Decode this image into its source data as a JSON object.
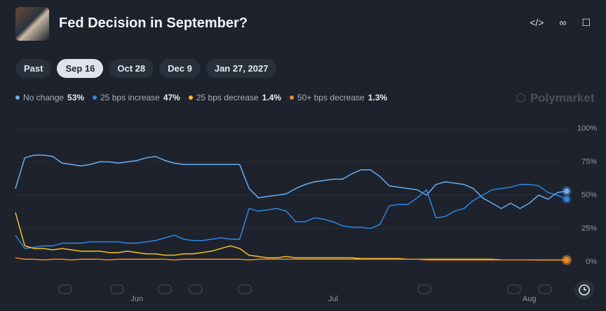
{
  "header": {
    "title": "Fed Decision in September?"
  },
  "tabs": [
    "Past",
    "Sep 16",
    "Oct 28",
    "Dec 9",
    "Jan 27, 2027"
  ],
  "watermark": "Polymarket",
  "chart_data": {
    "type": "line",
    "categories": [
      null,
      null,
      null,
      null,
      null,
      null,
      null,
      null,
      null,
      null,
      null,
      null,
      null,
      "Jun",
      null,
      null,
      null,
      null,
      null,
      null,
      null,
      null,
      null,
      null,
      null,
      null,
      null,
      null,
      null,
      null,
      null,
      null,
      null,
      null,
      "Jul",
      null,
      null,
      null,
      null,
      null,
      null,
      null,
      null,
      null,
      null,
      null,
      null,
      null,
      null,
      null,
      null,
      null,
      null,
      null,
      null,
      "Aug",
      null,
      null,
      null,
      null
    ],
    "ylim": [
      0,
      100
    ],
    "yticks": [
      {
        "value": 0,
        "label": "0%"
      },
      {
        "value": 25,
        "label": "25%"
      },
      {
        "value": 50,
        "label": "50%"
      },
      {
        "value": 75,
        "label": "75%"
      },
      {
        "value": 100,
        "label": "100%"
      }
    ],
    "grid": true,
    "series": [
      {
        "name": "No change",
        "color": "#6aaef0",
        "current": 53,
        "current_label": "53%",
        "values": [
          55,
          78,
          80,
          80,
          79,
          74,
          73,
          72,
          73,
          75,
          75,
          74,
          75,
          76,
          78,
          79,
          76,
          74,
          73,
          73,
          73,
          73,
          73,
          73,
          73,
          55,
          48,
          49,
          50,
          51,
          55,
          58,
          60,
          61,
          62,
          62,
          66,
          69,
          69,
          64,
          57,
          56,
          55,
          54,
          50,
          58,
          60,
          59,
          58,
          55,
          48,
          44,
          40,
          44,
          40,
          44,
          50,
          47,
          52,
          53
        ]
      },
      {
        "name": "25 bps increase",
        "color": "#2f86e6",
        "current": 47,
        "current_label": "47%",
        "values": [
          20,
          10,
          11,
          12,
          12,
          14,
          14,
          14,
          15,
          15,
          15,
          15,
          14,
          14,
          15,
          16,
          18,
          20,
          17,
          16,
          16,
          17,
          18,
          17,
          17,
          40,
          38,
          39,
          40,
          38,
          30,
          30,
          33,
          32,
          30,
          27,
          26,
          26,
          25,
          28,
          42,
          43,
          43,
          48,
          54,
          33,
          34,
          38,
          40,
          46,
          50,
          54,
          55,
          56,
          58,
          58,
          57,
          52,
          50,
          47
        ]
      },
      {
        "name": "25 bps decrease",
        "color": "#f2c41a",
        "current": 1.4,
        "current_label": "1.4%",
        "values": [
          37,
          12,
          10,
          10,
          9,
          10,
          9,
          8,
          8,
          8,
          7,
          7,
          8,
          7,
          6,
          6,
          5,
          5,
          6,
          6,
          7,
          8,
          10,
          12,
          10,
          5,
          4,
          3,
          3,
          4,
          3,
          3,
          3,
          3,
          3,
          3,
          3,
          2.5,
          2.5,
          2.5,
          2.5,
          2.5,
          2,
          2,
          2,
          2,
          2,
          2,
          2,
          2,
          2,
          2,
          1.5,
          1.5,
          1.5,
          1.5,
          1.4,
          1.4,
          1.4,
          1.4
        ]
      },
      {
        "name": "50+ bps decrease",
        "color": "#f0882a",
        "current": 1.3,
        "current_label": "1.3%",
        "values": [
          3,
          2,
          2,
          1.5,
          2,
          2,
          1.5,
          2,
          2,
          2,
          1.5,
          2,
          2,
          2,
          2,
          2,
          2,
          1.5,
          2,
          2,
          2,
          2,
          2,
          2,
          2,
          1.5,
          2,
          2,
          2,
          2,
          2,
          2,
          2,
          2,
          2,
          2,
          2,
          2,
          2,
          2,
          2,
          2,
          2,
          2,
          1.5,
          1.5,
          1.5,
          1.5,
          1.5,
          1.5,
          1.5,
          1.5,
          1.5,
          1.5,
          1.5,
          1.5,
          1.3,
          1.3,
          1.3,
          1.3
        ]
      }
    ]
  }
}
